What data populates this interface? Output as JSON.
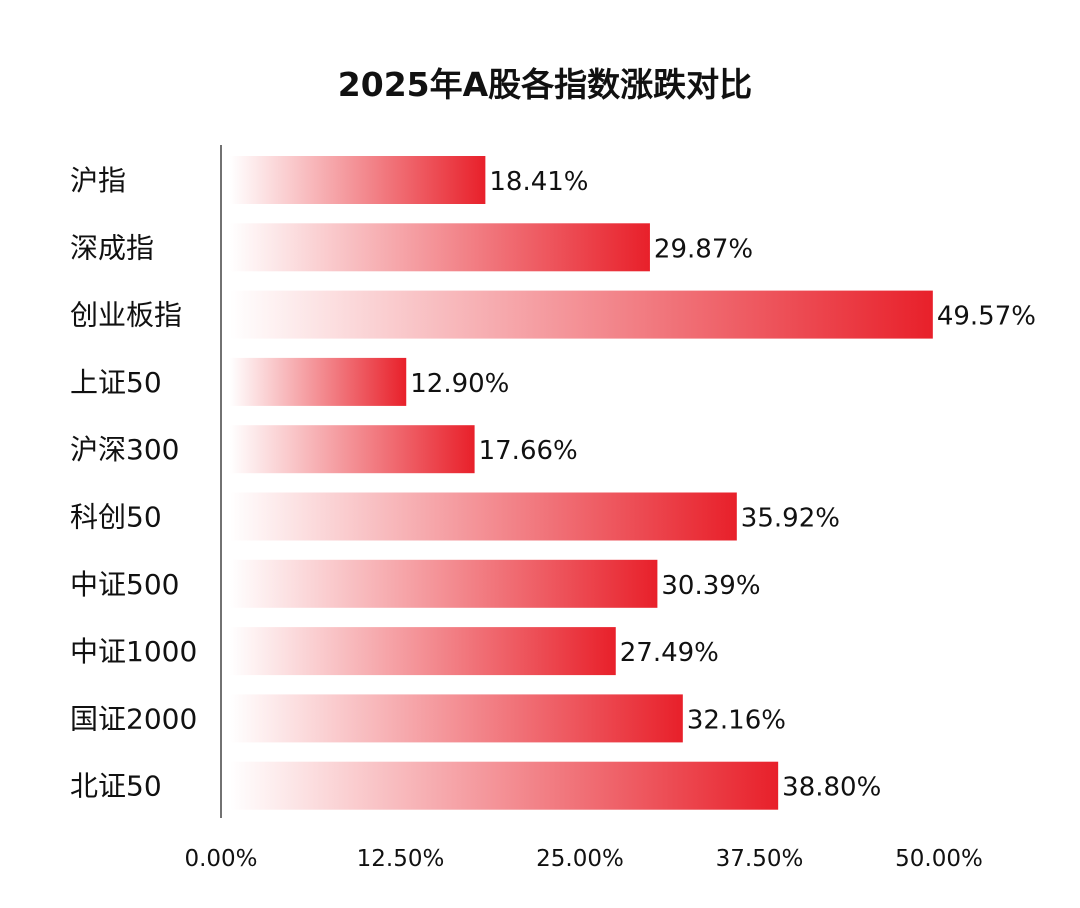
{
  "chart_data": {
    "type": "bar",
    "orientation": "horizontal",
    "title": "2025年A股各指数涨跌对比",
    "categories": [
      "沪指",
      "深成指",
      "创业板指",
      "上证50",
      "沪深300",
      "科创50",
      "中证500",
      "中证1000",
      "国证2000",
      "北证50"
    ],
    "values": [
      18.41,
      29.87,
      49.57,
      12.9,
      17.66,
      35.92,
      30.39,
      27.49,
      32.16,
      38.8
    ],
    "data_labels": [
      "18.41%",
      "29.87%",
      "49.57%",
      "12.90%",
      "17.66%",
      "35.92%",
      "30.39%",
      "27.49%",
      "32.16%",
      "38.80%"
    ],
    "xlim": [
      0,
      50
    ],
    "xticks": [
      "0.00%",
      "12.50%",
      "25.00%",
      "37.50%",
      "50.00%"
    ],
    "xtick_values": [
      0,
      12.5,
      25,
      37.5,
      50
    ],
    "grid": false,
    "bar_color": "#e8202a",
    "bar_gradient_start": "#ffffff",
    "xlabel": "",
    "ylabel": ""
  }
}
